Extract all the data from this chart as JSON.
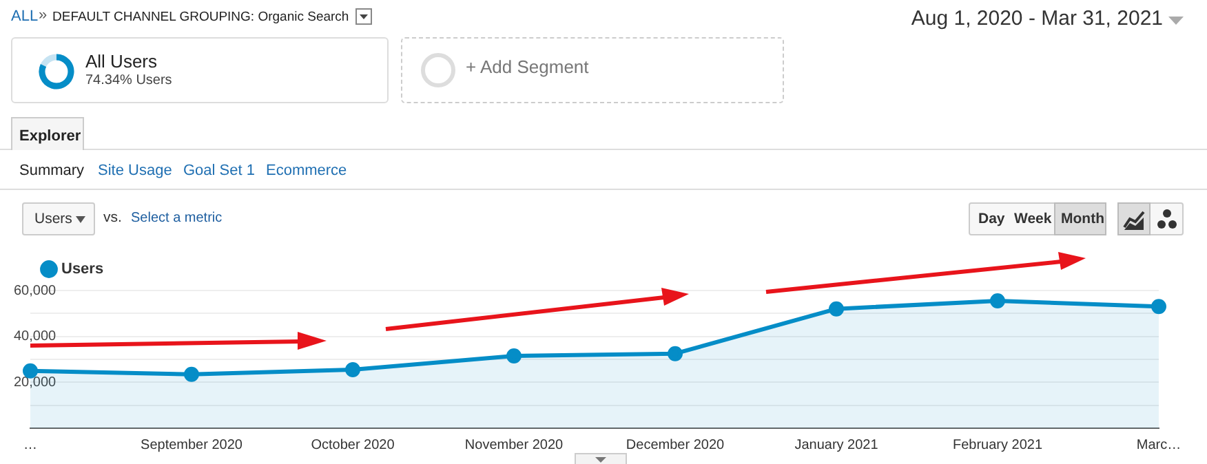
{
  "chart_data": {
    "type": "area",
    "subtitle": "Aug 1, 2020 - Mar 31, 2021",
    "categories": [
      "…",
      "September 2020",
      "October 2020",
      "November 2020",
      "December 2020",
      "January 2021",
      "February 2021",
      "Marc…"
    ],
    "series": [
      {
        "name": "Users",
        "color": "#058dc7",
        "values": [
          25000,
          23500,
          25500,
          31500,
          32500,
          52000,
          55500,
          53000
        ]
      }
    ],
    "ylim": [
      0,
      60000
    ],
    "yticks": [
      {
        "value": 10000,
        "label": null
      },
      {
        "value": 20000,
        "label": "20,000"
      },
      {
        "value": 30000,
        "label": null
      },
      {
        "value": 40000,
        "label": "40,000"
      },
      {
        "value": 50000,
        "label": null
      },
      {
        "value": 60000,
        "label": "60,000"
      }
    ],
    "grid": "y",
    "legend": "top left",
    "marker": "circle",
    "annotations": [
      "ALL",
      "»",
      "DEFAULT CHANNEL GROUPING: Organic Search",
      "All Users",
      "74.34% Users",
      "+ Add Segment",
      "Explorer",
      "Summary",
      "Site Usage",
      "Goal Set 1",
      "Ecommerce",
      "Users",
      "vs.",
      "Select a metric",
      "Day",
      "Week",
      "Month"
    ]
  }
}
